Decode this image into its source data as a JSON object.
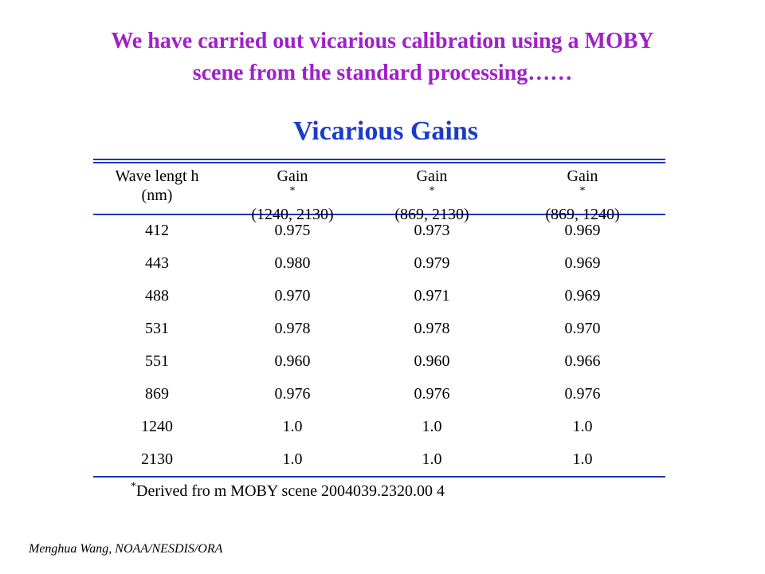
{
  "colors": {
    "headline": "#a020c8",
    "title": "#1a3cc8",
    "rules": "#1f36c2"
  },
  "headline": {
    "line1": "We have carried out vicarious calibration using a MOBY",
    "line2": "scene from the standard processing……"
  },
  "table": {
    "title": "Vicarious Gains",
    "footnote_mark": "*",
    "columns": [
      {
        "line1": "Wave lengt h",
        "line2": "(nm)",
        "marked": false
      },
      {
        "line1": "Gain",
        "line2": "(1240, 2130)",
        "marked": true
      },
      {
        "line1": "Gain",
        "line2": "(869, 2130)",
        "marked": true
      },
      {
        "line1": "Gain",
        "line2": "(869, 1240)",
        "marked": true
      }
    ],
    "rows": [
      [
        "412",
        "0.975",
        "0.973",
        "0.969"
      ],
      [
        "443",
        "0.980",
        "0.979",
        "0.969"
      ],
      [
        "488",
        "0.970",
        "0.971",
        "0.969"
      ],
      [
        "531",
        "0.978",
        "0.978",
        "0.970"
      ],
      [
        "551",
        "0.960",
        "0.960",
        "0.966"
      ],
      [
        "869",
        "0.976",
        "0.976",
        "0.976"
      ],
      [
        "1240",
        "1.0",
        "1.0",
        "1.0"
      ],
      [
        "2130",
        "1.0",
        "1.0",
        "1.0"
      ]
    ],
    "footnote": "Derived fro m MOBY  scene  2004039.2320.00 4"
  },
  "credit": "Menghua Wang, NOAA/NESDIS/ORA"
}
